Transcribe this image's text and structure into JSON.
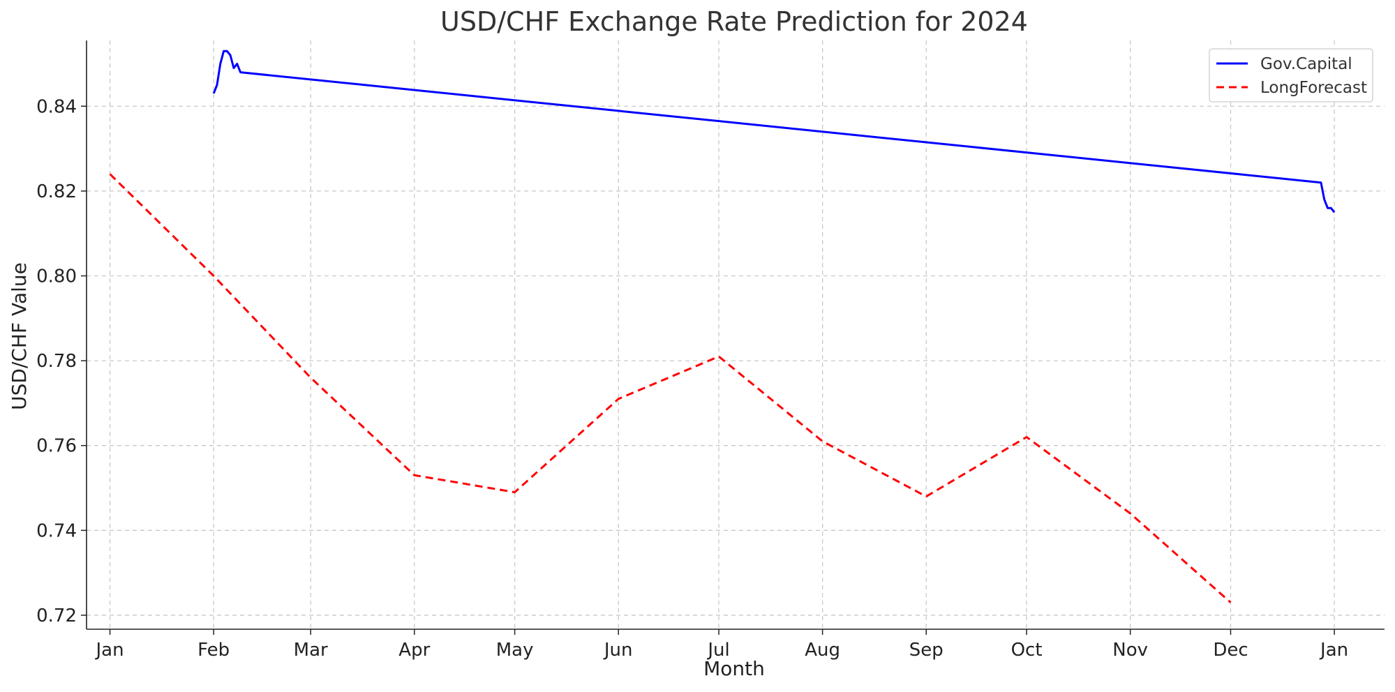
{
  "chart_data": {
    "type": "line",
    "title": "USD/CHF Exchange Rate Prediction for 2024",
    "xlabel": "Month",
    "ylabel": "USD/CHF Value",
    "xlim": [
      "2023-12-25",
      "2025-01-16"
    ],
    "ylim": [
      0.7167,
      0.8555
    ],
    "x_tick_labels": [
      {
        "date": "2024-01-01",
        "label": "Jan"
      },
      {
        "date": "2024-02-01",
        "label": "Feb"
      },
      {
        "date": "2024-03-01",
        "label": "Mar"
      },
      {
        "date": "2024-04-01",
        "label": "Apr"
      },
      {
        "date": "2024-05-01",
        "label": "May"
      },
      {
        "date": "2024-06-01",
        "label": "Jun"
      },
      {
        "date": "2024-07-01",
        "label": "Jul"
      },
      {
        "date": "2024-08-01",
        "label": "Aug"
      },
      {
        "date": "2024-09-01",
        "label": "Sep"
      },
      {
        "date": "2024-10-01",
        "label": "Oct"
      },
      {
        "date": "2024-11-01",
        "label": "Nov"
      },
      {
        "date": "2024-12-01",
        "label": "Dec"
      },
      {
        "date": "2025-01-01",
        "label": "Jan"
      }
    ],
    "y_ticks": [
      0.72,
      0.74,
      0.76,
      0.78,
      0.8,
      0.82,
      0.84
    ],
    "y_tick_labels": [
      "0.72",
      "0.74",
      "0.76",
      "0.78",
      "0.80",
      "0.82",
      "0.84"
    ],
    "grid": true,
    "legend_position": "top-right",
    "series": [
      {
        "name": "Gov.Capital",
        "color": "#0000ff",
        "style": "solid",
        "points": [
          {
            "x": "2024-02-01",
            "y": 0.843
          },
          {
            "x": "2024-02-02",
            "y": 0.845
          },
          {
            "x": "2024-02-03",
            "y": 0.85
          },
          {
            "x": "2024-02-04",
            "y": 0.853
          },
          {
            "x": "2024-02-05",
            "y": 0.853
          },
          {
            "x": "2024-02-06",
            "y": 0.852
          },
          {
            "x": "2024-02-07",
            "y": 0.849
          },
          {
            "x": "2024-02-08",
            "y": 0.85
          },
          {
            "x": "2024-02-09",
            "y": 0.848
          },
          {
            "x": "2024-12-28",
            "y": 0.822
          },
          {
            "x": "2024-12-29",
            "y": 0.818
          },
          {
            "x": "2024-12-30",
            "y": 0.816
          },
          {
            "x": "2024-12-31",
            "y": 0.816
          },
          {
            "x": "2025-01-01",
            "y": 0.815
          }
        ]
      },
      {
        "name": "LongForecast",
        "color": "#ff0000",
        "style": "dashed",
        "points": [
          {
            "x": "2024-01-01",
            "y": 0.824
          },
          {
            "x": "2024-02-01",
            "y": 0.8
          },
          {
            "x": "2024-03-01",
            "y": 0.776
          },
          {
            "x": "2024-04-01",
            "y": 0.753
          },
          {
            "x": "2024-05-01",
            "y": 0.749
          },
          {
            "x": "2024-06-01",
            "y": 0.771
          },
          {
            "x": "2024-07-01",
            "y": 0.781
          },
          {
            "x": "2024-08-01",
            "y": 0.761
          },
          {
            "x": "2024-09-01",
            "y": 0.748
          },
          {
            "x": "2024-10-01",
            "y": 0.762
          },
          {
            "x": "2024-11-01",
            "y": 0.744
          },
          {
            "x": "2024-12-01",
            "y": 0.723
          }
        ]
      }
    ]
  }
}
